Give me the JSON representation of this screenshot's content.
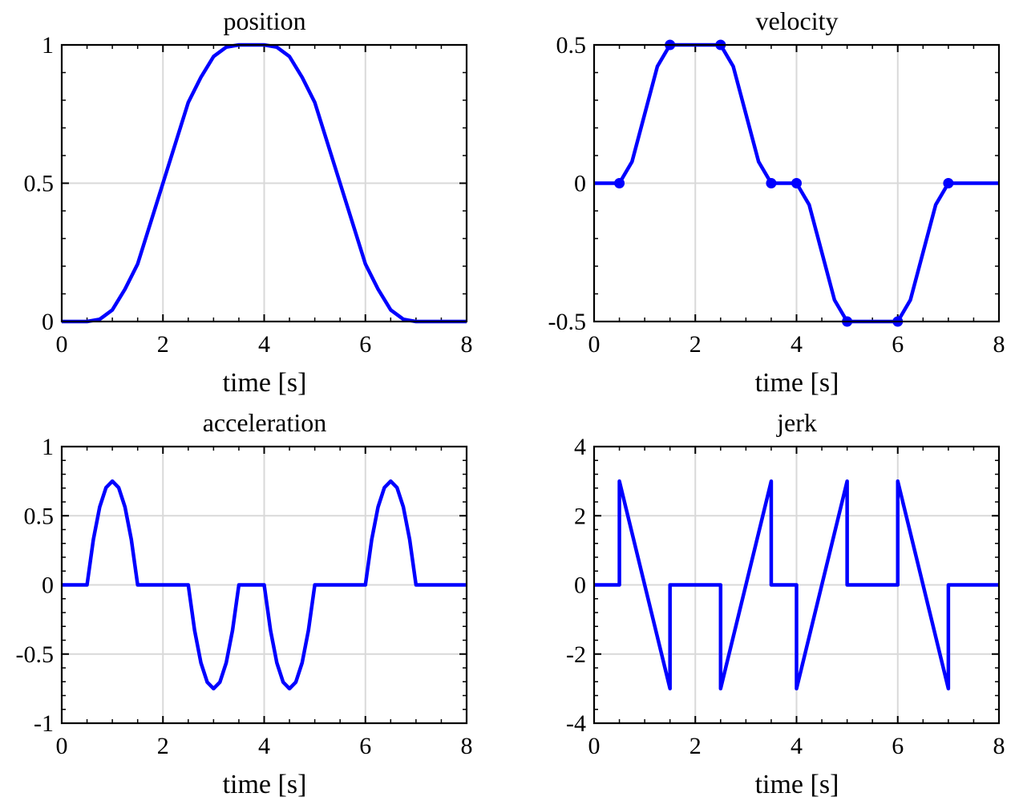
{
  "figure": {
    "line_color": "#0000ff",
    "grid_color": "#d9d9d9",
    "axis_color": "#000000"
  },
  "chart_data": [
    {
      "type": "line",
      "title": "position",
      "xlabel": "time [s]",
      "ylabel": "",
      "xlim": [
        0,
        8
      ],
      "ylim": [
        0,
        1
      ],
      "xticks": [
        0,
        2,
        4,
        6,
        8
      ],
      "xtick_labels": [
        "0",
        "2",
        "4",
        "6",
        "8"
      ],
      "yticks": [
        0,
        0.5,
        1
      ],
      "ytick_labels": [
        "0",
        "0.5",
        "1"
      ],
      "grid": true,
      "series": [
        {
          "x": [
            0,
            0.5,
            0.75,
            1.0,
            1.25,
            1.5,
            2.0,
            2.5,
            2.75,
            3.0,
            3.25,
            3.5,
            4.0,
            4.25,
            4.5,
            4.75,
            5.0,
            5.5,
            6.0,
            6.25,
            6.5,
            6.75,
            7.0,
            8.0
          ],
          "y": [
            0,
            0,
            0.008,
            0.042,
            0.117,
            0.208,
            0.5,
            0.792,
            0.883,
            0.958,
            0.992,
            1.0,
            1.0,
            0.992,
            0.958,
            0.883,
            0.792,
            0.5,
            0.208,
            0.117,
            0.042,
            0.008,
            0,
            0
          ]
        }
      ]
    },
    {
      "type": "line",
      "title": "velocity",
      "xlabel": "time [s]",
      "ylabel": "",
      "xlim": [
        0,
        8
      ],
      "ylim": [
        -0.5,
        0.5
      ],
      "xticks": [
        0,
        2,
        4,
        6,
        8
      ],
      "xtick_labels": [
        "0",
        "2",
        "4",
        "6",
        "8"
      ],
      "yticks": [
        -0.5,
        0,
        0.5
      ],
      "ytick_labels": [
        "-0.5",
        "0",
        "0.5"
      ],
      "grid": true,
      "series": [
        {
          "x": [
            0,
            0.5,
            0.75,
            1.0,
            1.25,
            1.5,
            2.5,
            2.75,
            3.0,
            3.25,
            3.5,
            4.0,
            4.25,
            4.5,
            4.75,
            5.0,
            6.0,
            6.25,
            6.5,
            6.75,
            7.0,
            8.0
          ],
          "y": [
            0,
            0,
            0.078,
            0.25,
            0.422,
            0.5,
            0.5,
            0.422,
            0.25,
            0.078,
            0,
            0,
            -0.078,
            -0.25,
            -0.422,
            -0.5,
            -0.5,
            -0.422,
            -0.25,
            -0.078,
            0,
            0
          ]
        }
      ],
      "markers": {
        "x": [
          0.5,
          1.5,
          2.5,
          3.5,
          4.0,
          5.0,
          6.0,
          7.0
        ],
        "y": [
          0,
          0.5,
          0.5,
          0,
          0,
          -0.5,
          -0.5,
          0
        ]
      }
    },
    {
      "type": "line",
      "title": "acceleration",
      "xlabel": "time [s]",
      "ylabel": "",
      "xlim": [
        0,
        8
      ],
      "ylim": [
        -1,
        1
      ],
      "xticks": [
        0,
        2,
        4,
        6,
        8
      ],
      "xtick_labels": [
        "0",
        "2",
        "4",
        "6",
        "8"
      ],
      "yticks": [
        -1,
        -0.5,
        0,
        0.5,
        1
      ],
      "ytick_labels": [
        "-1",
        "-0.5",
        "0",
        "0.5",
        "1"
      ],
      "grid": true,
      "series": [
        {
          "x": [
            0,
            0.5,
            0.625,
            0.75,
            0.875,
            1.0,
            1.125,
            1.25,
            1.375,
            1.5,
            2.5,
            2.625,
            2.75,
            2.875,
            3.0,
            3.125,
            3.25,
            3.375,
            3.5,
            4.0,
            4.125,
            4.25,
            4.375,
            4.5,
            4.625,
            4.75,
            4.875,
            5.0,
            6.0,
            6.125,
            6.25,
            6.375,
            6.5,
            6.625,
            6.75,
            6.875,
            7.0,
            8.0
          ],
          "y": [
            0,
            0,
            0.328,
            0.563,
            0.703,
            0.75,
            0.703,
            0.563,
            0.328,
            0,
            0,
            -0.328,
            -0.563,
            -0.703,
            -0.75,
            -0.703,
            -0.563,
            -0.328,
            0,
            0,
            -0.328,
            -0.563,
            -0.703,
            -0.75,
            -0.703,
            -0.563,
            -0.328,
            0,
            0,
            0.328,
            0.563,
            0.703,
            0.75,
            0.703,
            0.563,
            0.328,
            0,
            0
          ]
        }
      ]
    },
    {
      "type": "line",
      "title": "jerk",
      "xlabel": "time [s]",
      "ylabel": "",
      "xlim": [
        0,
        8
      ],
      "ylim": [
        -4,
        4
      ],
      "xticks": [
        0,
        2,
        4,
        6,
        8
      ],
      "xtick_labels": [
        "0",
        "2",
        "4",
        "6",
        "8"
      ],
      "yticks": [
        -4,
        -2,
        0,
        2,
        4
      ],
      "ytick_labels": [
        "-4",
        "-2",
        "0",
        "2",
        "4"
      ],
      "grid": true,
      "series": [
        {
          "x": [
            0,
            0.5,
            0.5,
            1.5,
            1.5,
            2.5,
            2.5,
            3.5,
            3.5,
            4.0,
            4.0,
            5.0,
            5.0,
            6.0,
            6.0,
            7.0,
            7.0,
            8.0
          ],
          "y": [
            0,
            0,
            3,
            -3,
            0,
            0,
            -3,
            3,
            0,
            0,
            -3,
            3,
            0,
            0,
            3,
            -3,
            0,
            0
          ]
        }
      ]
    }
  ]
}
